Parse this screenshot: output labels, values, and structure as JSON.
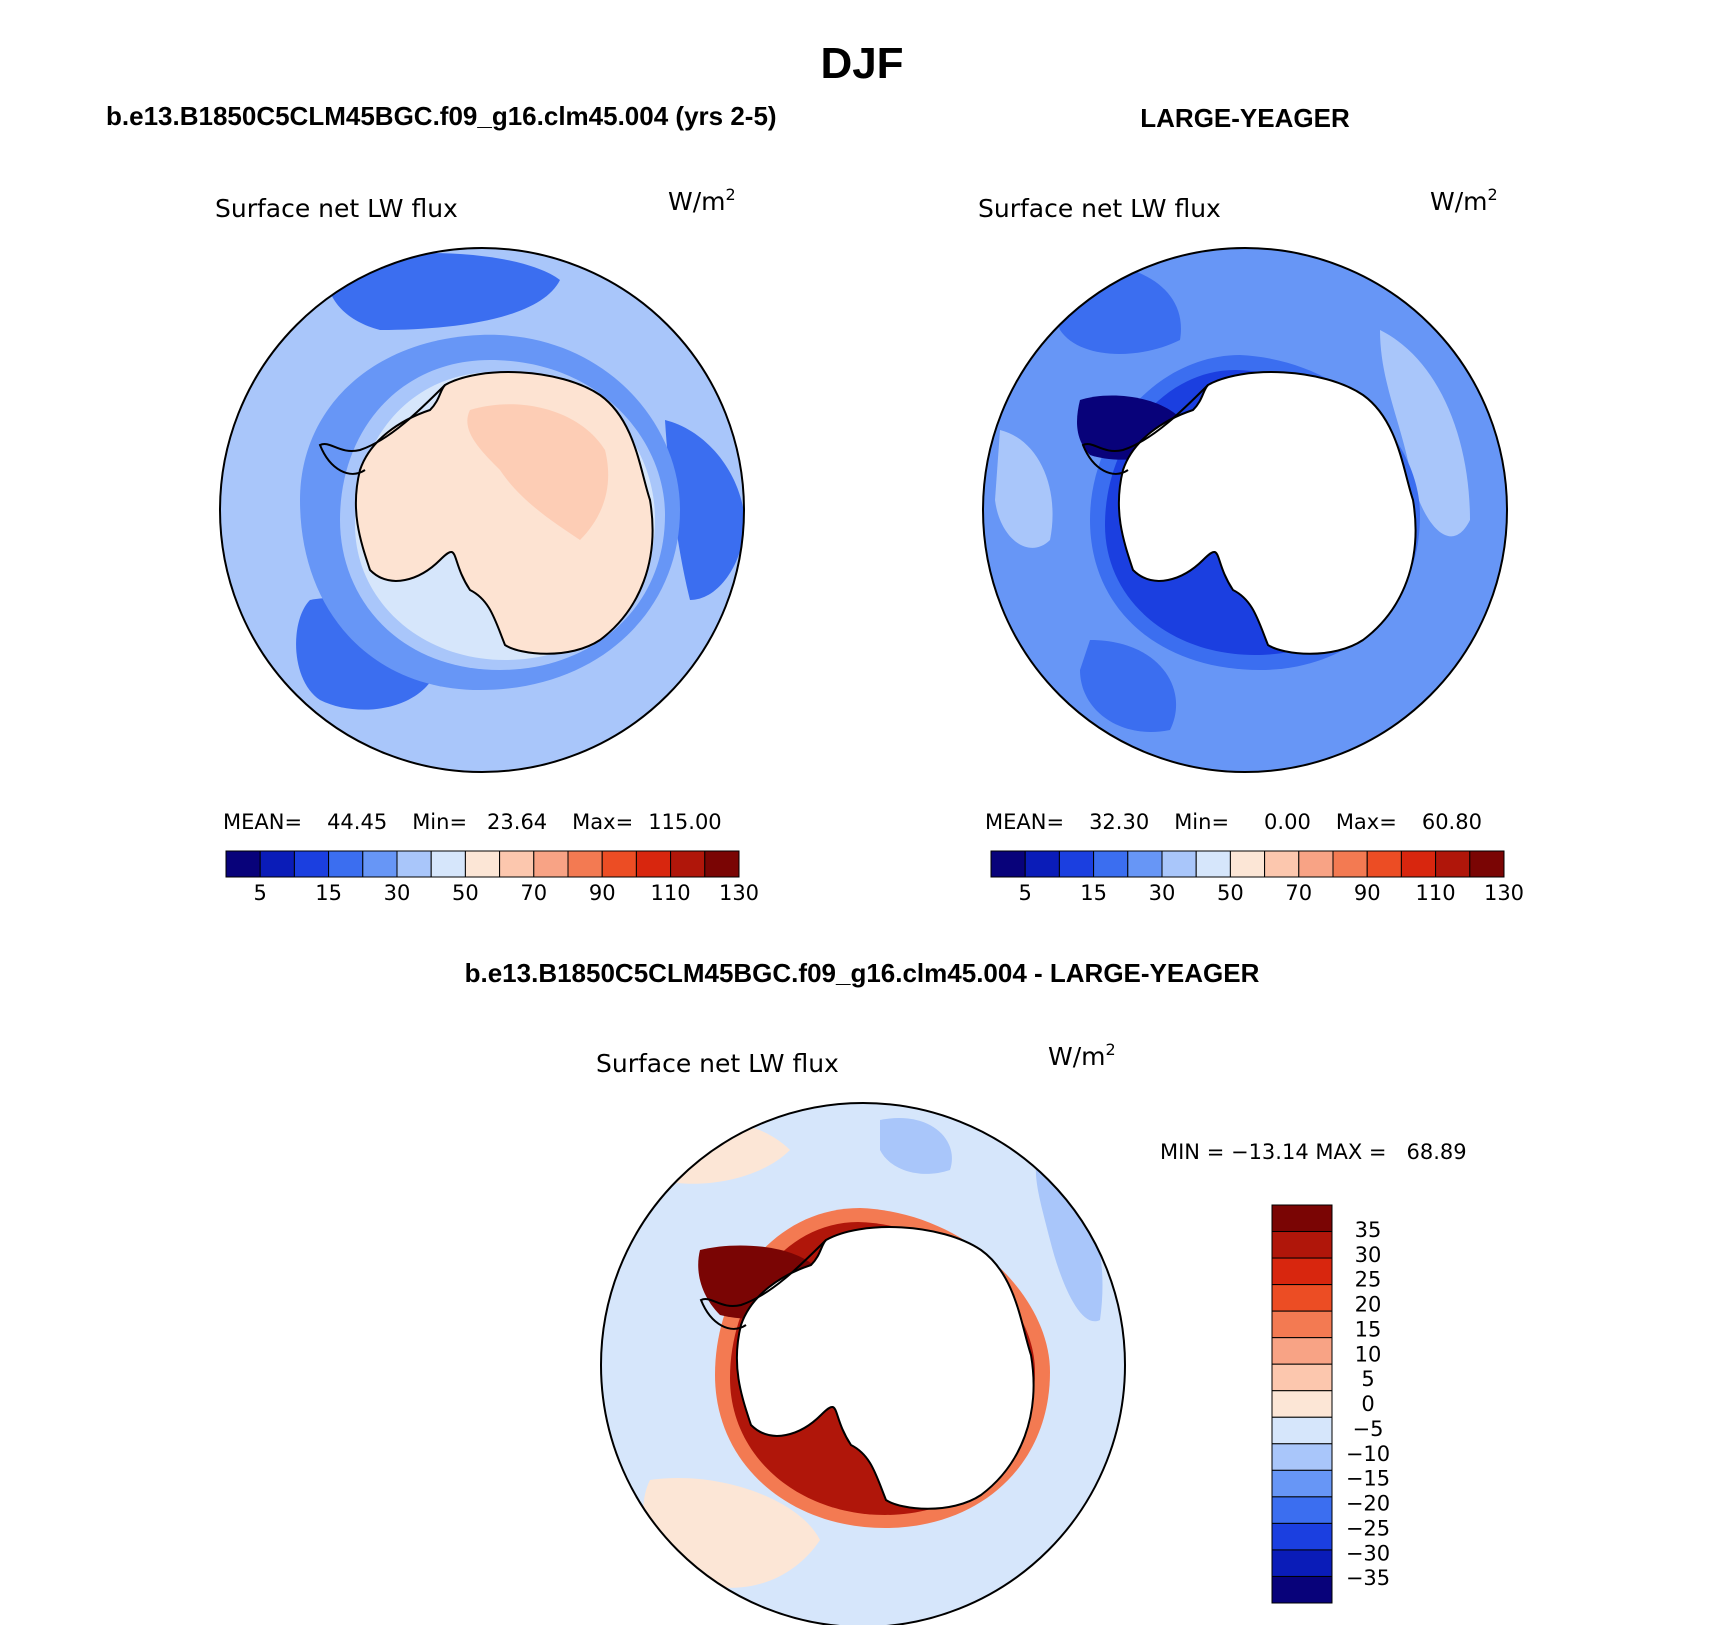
{
  "page_title": "DJF",
  "colors": {
    "seq_palette": [
      "#08027a",
      "#0a1cb8",
      "#1b3fe0",
      "#3b6ef0",
      "#6796f6",
      "#a9c6fa",
      "#d6e6fb",
      "#fce6d6",
      "#fcc7ae",
      "#f8a385",
      "#f37a52",
      "#ec4d24",
      "#d8260e",
      "#b0160a",
      "#7a0504"
    ],
    "diff_palette": [
      "#08027a",
      "#0a1cb8",
      "#1b3fe0",
      "#3b6ef0",
      "#6796f6",
      "#a9c6fa",
      "#d6e6fb",
      "#fce6d6",
      "#fcc7ae",
      "#f8a385",
      "#f37a52",
      "#ec4d24",
      "#d8260e",
      "#b0160a",
      "#7a0504"
    ],
    "land_model": "#fde3d2",
    "land_obs": "#ffffff"
  },
  "chart_data": [
    {
      "type": "heatmap",
      "panel": "model",
      "title": "b.e13.B1850C5CLM45BGC.f09_g16.clm45.004 (yrs 2-5)",
      "subtitle": "Surface net LW flux",
      "units": "W/m",
      "units_sup": "2",
      "stats": {
        "mean_label": "MEAN=",
        "mean": "44.45",
        "min_label": "Min=",
        "min": "23.64",
        "max_label": "Max=",
        "max": "115.00"
      },
      "colorbar_ticks": [
        "5",
        "15",
        "30",
        "50",
        "70",
        "90",
        "110",
        "130"
      ],
      "field": {
        "ocean_mean": 35,
        "coast_ring": 50,
        "land": 70
      }
    },
    {
      "type": "heatmap",
      "panel": "obs",
      "title": "LARGE-YEAGER",
      "subtitle": "Surface net LW flux",
      "units": "W/m",
      "units_sup": "2",
      "stats": {
        "mean_label": "MEAN=",
        "mean": "32.30",
        "min_label": "Min=",
        "min": "0.00",
        "max_label": "Max=",
        "max": "60.80"
      },
      "colorbar_ticks": [
        "5",
        "15",
        "30",
        "50",
        "70",
        "90",
        "110",
        "130"
      ],
      "field": {
        "ocean_mean": 32,
        "coast_ring": 12,
        "land": null
      }
    },
    {
      "type": "heatmap",
      "panel": "difference",
      "title": "b.e13.B1850C5CLM45BGC.f09_g16.clm45.004 - LARGE-YEAGER",
      "subtitle": "Surface net LW flux",
      "units": "W/m",
      "units_sup": "2",
      "stats": {
        "text": "MIN = −13.14 MAX =   68.89"
      },
      "colorbar_ticks": [
        "35",
        "30",
        "25",
        "20",
        "15",
        "10",
        "5",
        "0",
        "−5",
        "−10",
        "−15",
        "−20",
        "−25",
        "−30",
        "−35"
      ],
      "field": {
        "ocean_mean": -3,
        "coast_ring": 35,
        "land": null
      }
    }
  ]
}
